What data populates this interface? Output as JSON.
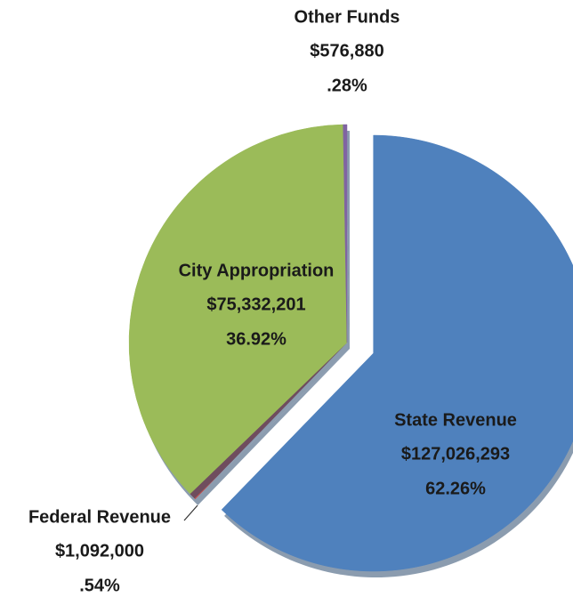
{
  "chart_data": {
    "type": "pie",
    "categories": [
      "State Revenue",
      "Federal Revenue",
      "City Appropriation",
      "Other Funds"
    ],
    "values": [
      127026293,
      1092000,
      75332201,
      576880
    ],
    "value_labels": [
      "$127,026,293",
      "$1,092,000",
      "$75,332,201",
      "$576,880"
    ],
    "percent_labels": [
      "62.26%",
      ".54%",
      "36.92%",
      ".28%"
    ],
    "colors": [
      "#4f81bd",
      "#c0504d",
      "#9bbb59",
      "#8064a2"
    ],
    "exploded": "State Revenue"
  }
}
